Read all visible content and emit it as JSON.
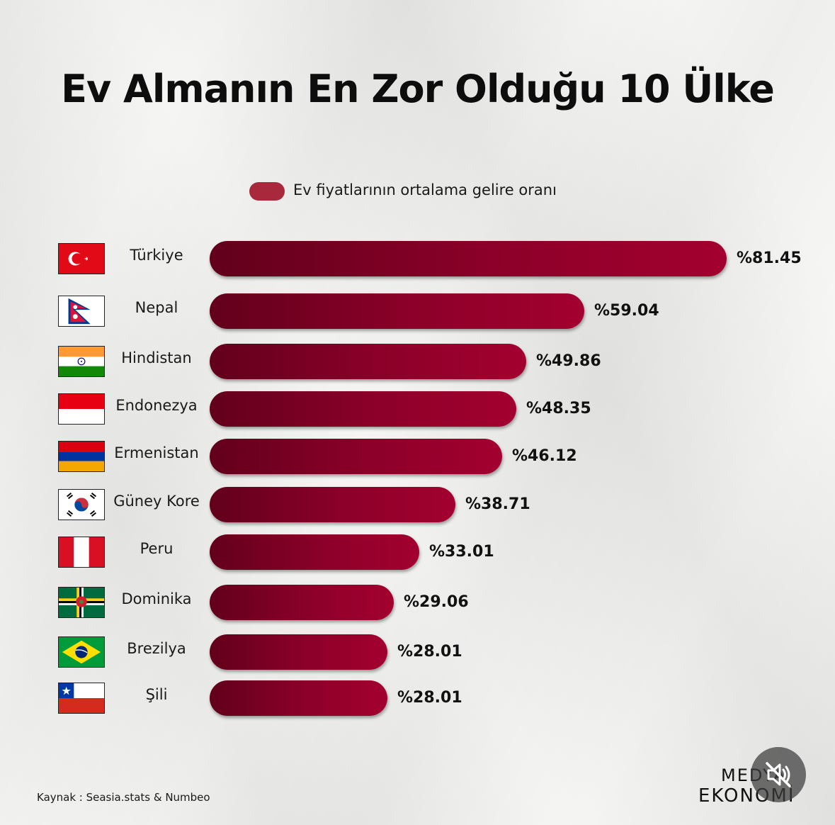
{
  "title": "Ev Almanın En Zor Olduğu 10 Ülke",
  "legend": {
    "label": "Ev fiyatlarının ortalama gelire oranı",
    "color": "#a8283c"
  },
  "source": "Kaynak : Seasia.stats & Numbeo",
  "brand": {
    "line1": "MEDYA",
    "line2": "EKONOMİ"
  },
  "media_controls": {
    "mute_icon": "speaker-muted-icon"
  },
  "chart_data": {
    "type": "bar",
    "orientation": "horizontal",
    "title": "Ev Almanın En Zor Olduğu 10 Ülke",
    "categories": [
      "Türkiye",
      "Nepal",
      "Hindistan",
      "Endonezya",
      "Ermenistan",
      "Güney Kore",
      "Peru",
      "Dominika",
      "Brezilya",
      "Şili"
    ],
    "series": [
      {
        "name": "Ev fiyatlarının ortalama gelire oranı",
        "values": [
          81.45,
          59.04,
          49.86,
          48.35,
          46.12,
          38.71,
          33.01,
          29.06,
          28.01,
          28.01
        ],
        "color": "#8c0028"
      }
    ],
    "labels": [
      "%81.45",
      "%59.04",
      "%49.86",
      "%48.35",
      "%46.12",
      "%38.71",
      "%33.01",
      "%29.06",
      "%28.01",
      "%28.01"
    ],
    "flags": [
      "turkey-flag-icon",
      "nepal-flag-icon",
      "india-flag-icon",
      "indonesia-flag-icon",
      "armenia-flag-icon",
      "south-korea-flag-icon",
      "peru-flag-icon",
      "dominica-flag-icon",
      "brazil-flag-icon",
      "chile-flag-icon"
    ],
    "legend_position": "top",
    "grid": false
  }
}
